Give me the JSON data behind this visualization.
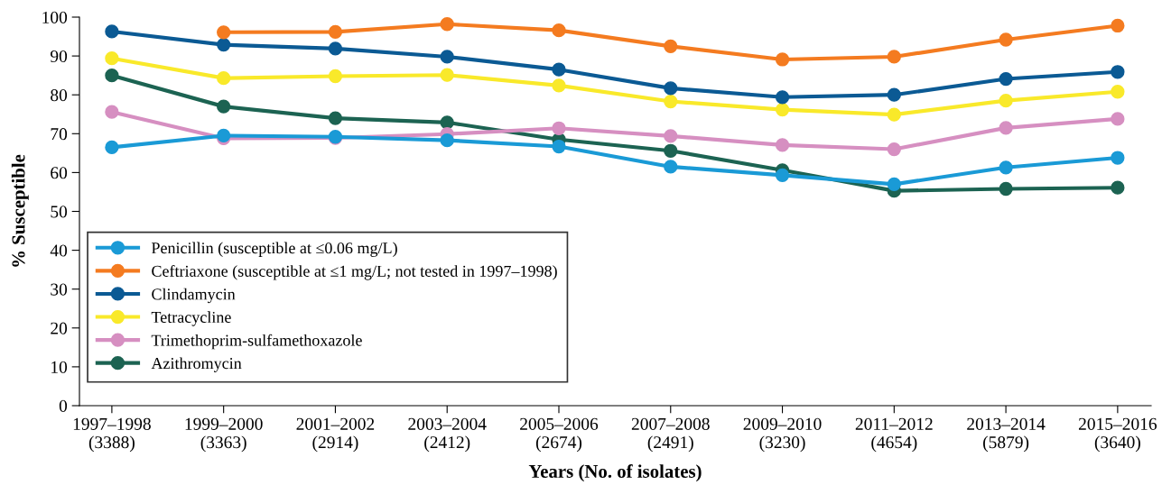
{
  "chart_data": {
    "type": "line",
    "xlabel": "Years (No. of isolates)",
    "ylabel": "% Susceptible",
    "categories": [
      "1997–1998\n(3388)",
      "1999–2000\n(3363)",
      "2001–2002\n(2914)",
      "2003–2004\n(2412)",
      "2005–2006\n(2674)",
      "2007–2008\n(2491)",
      "2009–2010\n(3230)",
      "2011–2012\n(4654)",
      "2013–2014\n(5879)",
      "2015–2016\n(3640)"
    ],
    "series": [
      {
        "name": "Penicillin (susceptible at ≤0.06 mg/L)",
        "color": "#1a9ad6",
        "values": [
          66.5,
          69.5,
          69.2,
          68.3,
          66.7,
          61.5,
          59.3,
          57.0,
          61.3,
          63.8
        ]
      },
      {
        "name": "Ceftriaxone (susceptible at ≤1 mg/L; not tested in 1997–1998)",
        "color": "#f47b20",
        "values": [
          null,
          96.1,
          96.2,
          98.2,
          96.6,
          92.5,
          89.1,
          89.8,
          94.2,
          97.8
        ]
      },
      {
        "name": "Clindamycin",
        "color": "#0b5a94",
        "values": [
          96.3,
          92.9,
          91.9,
          89.8,
          86.5,
          81.7,
          79.4,
          80.0,
          84.1,
          85.9
        ]
      },
      {
        "name": "Tetracycline",
        "color": "#f9e92a",
        "values": [
          89.4,
          84.3,
          84.8,
          85.1,
          82.4,
          78.3,
          76.2,
          74.9,
          78.5,
          80.8
        ]
      },
      {
        "name": "Trimethoprim-sulfamethoxazole",
        "color": "#d68fc1",
        "values": [
          75.6,
          68.8,
          68.9,
          69.9,
          71.4,
          69.4,
          67.1,
          66.0,
          71.5,
          73.8
        ]
      },
      {
        "name": "Azithromycin",
        "color": "#1c6352",
        "values": [
          85.0,
          77.0,
          74.0,
          72.9,
          68.5,
          65.6,
          60.6,
          55.3,
          55.8,
          56.1
        ]
      }
    ],
    "ylim": [
      0,
      100
    ],
    "yticks": [
      0,
      10,
      20,
      30,
      40,
      50,
      60,
      70,
      80,
      90,
      100
    ],
    "legend": "bottom left",
    "marker": "circle",
    "line_style": "solid",
    "grid": false
  }
}
